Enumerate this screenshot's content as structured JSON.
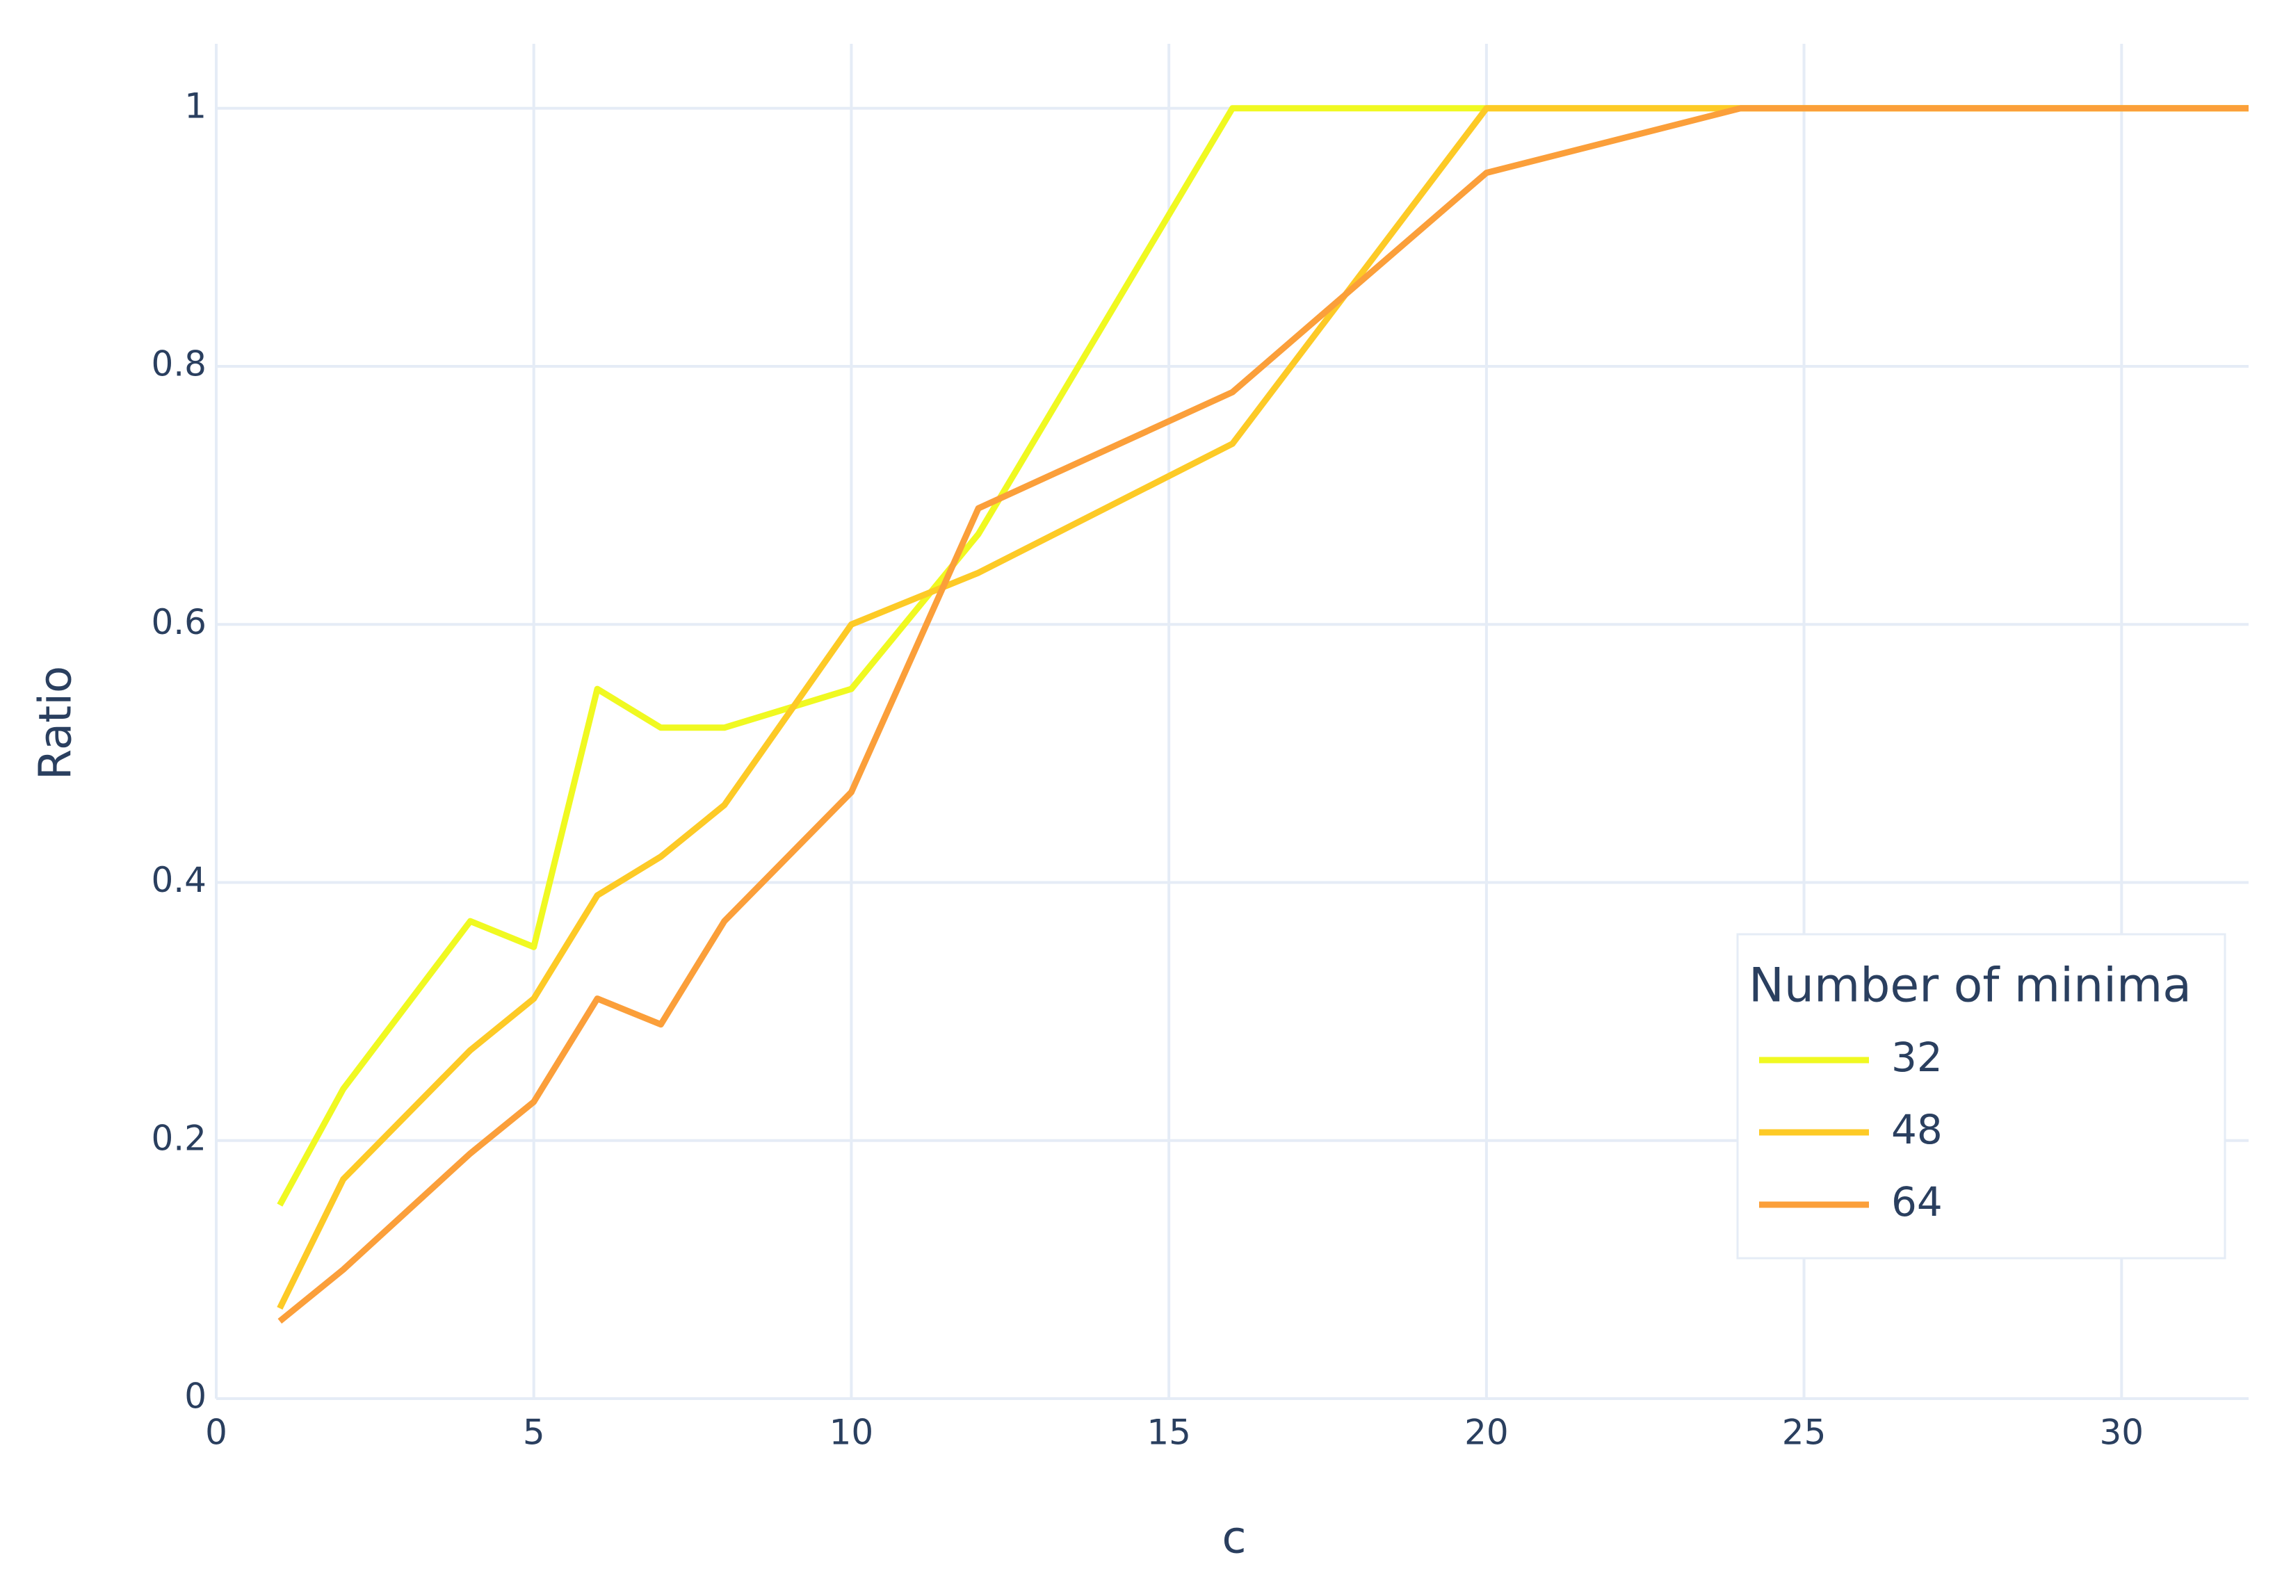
{
  "chart_data": {
    "type": "line",
    "x_label": "c",
    "y_label": "Ratio",
    "x": [
      1,
      2,
      4,
      5,
      6,
      7,
      8,
      10,
      12,
      16,
      20,
      24,
      32
    ],
    "series": [
      {
        "name": "32",
        "color": "#f0f921",
        "values": [
          0.15,
          0.24,
          0.37,
          0.35,
          0.55,
          0.52,
          0.52,
          0.55,
          0.67,
          1,
          1,
          1,
          1
        ]
      },
      {
        "name": "48",
        "color": "#fdca26",
        "values": [
          0.07,
          0.17,
          0.27,
          0.31,
          0.39,
          0.42,
          0.46,
          0.6,
          0.64,
          0.74,
          1,
          1,
          1
        ]
      },
      {
        "name": "64",
        "color": "#fb9f3a",
        "values": [
          0.06,
          0.1,
          0.19,
          0.23,
          0.31,
          0.29,
          0.37,
          0.47,
          0.69,
          0.78,
          0.95,
          1,
          1
        ]
      }
    ],
    "legend_title": "Number of minima",
    "legend_position": "lower right",
    "xlim": [
      0,
      32
    ],
    "xticks": [
      0,
      5,
      10,
      15,
      20,
      25,
      30
    ],
    "ylim": [
      0,
      1.05
    ],
    "yticks": [
      0,
      0.2,
      0.4,
      0.6,
      0.8,
      1
    ],
    "grid": true
  }
}
